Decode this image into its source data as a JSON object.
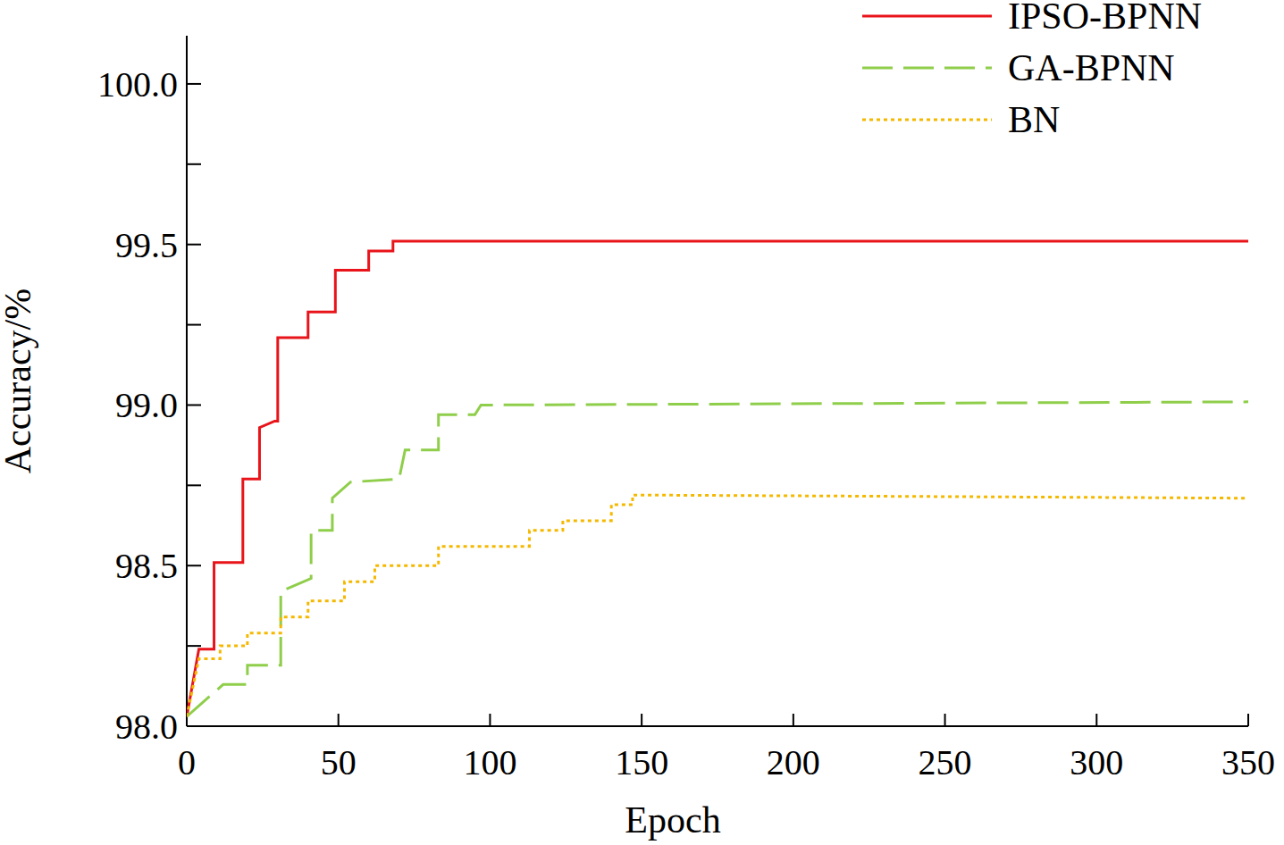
{
  "chart_data": {
    "type": "line",
    "x_label": "Epoch",
    "y_label": "Accuracy/%",
    "xlim": [
      0,
      350
    ],
    "xticks": [
      0,
      50,
      100,
      150,
      200,
      250,
      300,
      350
    ],
    "ylim": [
      98,
      100.15
    ],
    "yticks": [
      {
        "value": 98,
        "label": "98.0"
      },
      {
        "value": 98.5,
        "label": "98.5"
      },
      {
        "value": 99,
        "label": "99.0"
      },
      {
        "value": 99.5,
        "label": "99.5"
      },
      {
        "value": 100,
        "label": "100.0"
      }
    ],
    "grid": false,
    "legend": "top-right",
    "series": [
      {
        "name": "IPSO-BPNN",
        "color": "#e8141a",
        "line_style": "solid",
        "x": [
          0,
          4,
          9,
          9,
          18.5,
          18.5,
          24,
          24,
          29,
          30,
          30,
          40,
          40,
          49,
          49,
          60,
          60,
          68,
          68,
          350
        ],
        "values": [
          98.03,
          98.24,
          98.24,
          98.51,
          98.51,
          98.77,
          98.77,
          98.93,
          98.95,
          98.95,
          99.21,
          99.21,
          99.29,
          99.29,
          99.42,
          99.42,
          99.48,
          99.48,
          99.51,
          99.51
        ]
      },
      {
        "name": "GA-BPNN",
        "color": "#8fce4a",
        "line_style": "dashed",
        "x": [
          0,
          12,
          20,
          20,
          31,
          31,
          41,
          41,
          48,
          48,
          54,
          70,
          72,
          83,
          83,
          95,
          97,
          350
        ],
        "values": [
          98.03,
          98.13,
          98.13,
          98.19,
          98.19,
          98.42,
          98.46,
          98.61,
          98.61,
          98.71,
          98.76,
          98.77,
          98.86,
          98.86,
          98.97,
          98.97,
          99.0,
          99.01
        ]
      },
      {
        "name": "BN",
        "color": "#f5b800",
        "line_style": "dotted",
        "x": [
          0,
          4,
          11,
          11,
          20,
          20,
          31,
          31,
          40,
          40,
          52,
          52,
          62,
          62,
          83,
          83,
          113,
          113,
          124,
          124,
          140,
          140,
          147,
          147,
          350
        ],
        "values": [
          98.03,
          98.21,
          98.21,
          98.25,
          98.25,
          98.29,
          98.29,
          98.34,
          98.34,
          98.39,
          98.39,
          98.45,
          98.45,
          98.5,
          98.5,
          98.56,
          98.56,
          98.61,
          98.61,
          98.64,
          98.64,
          98.69,
          98.69,
          98.72,
          98.71
        ]
      }
    ]
  }
}
